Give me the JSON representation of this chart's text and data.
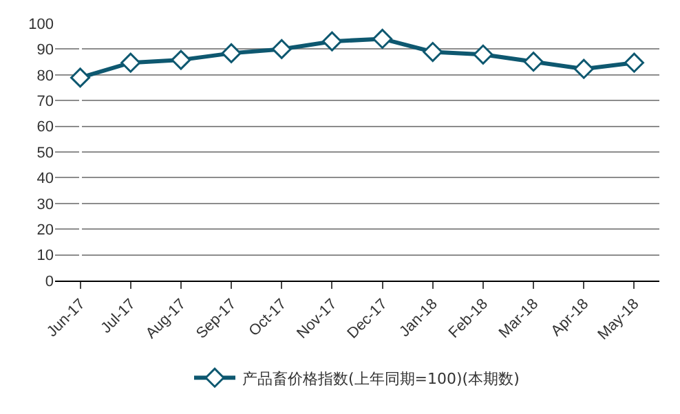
{
  "chart_data": {
    "type": "line",
    "categories": [
      "Jun-17",
      "Jul-17",
      "Aug-17",
      "Sep-17",
      "Oct-17",
      "Nov-17",
      "Dec-17",
      "Jan-18",
      "Feb-18",
      "Mar-18",
      "Apr-18",
      "May-18"
    ],
    "series": [
      {
        "name": "产品畜价格指数(上年同期=100)(本期数)",
        "color": "#0e5870",
        "values": [
          78.9,
          84.7,
          85.8,
          88.4,
          90.0,
          93.0,
          94.0,
          88.9,
          87.9,
          85.1,
          82.3,
          84.7
        ]
      }
    ],
    "ylim": [
      0,
      100
    ],
    "yticks": [
      0,
      10,
      20,
      30,
      40,
      50,
      60,
      70,
      80,
      90,
      100
    ],
    "grid": "y",
    "legend": "bottom",
    "marker": "diamond",
    "line_style": "solid"
  }
}
